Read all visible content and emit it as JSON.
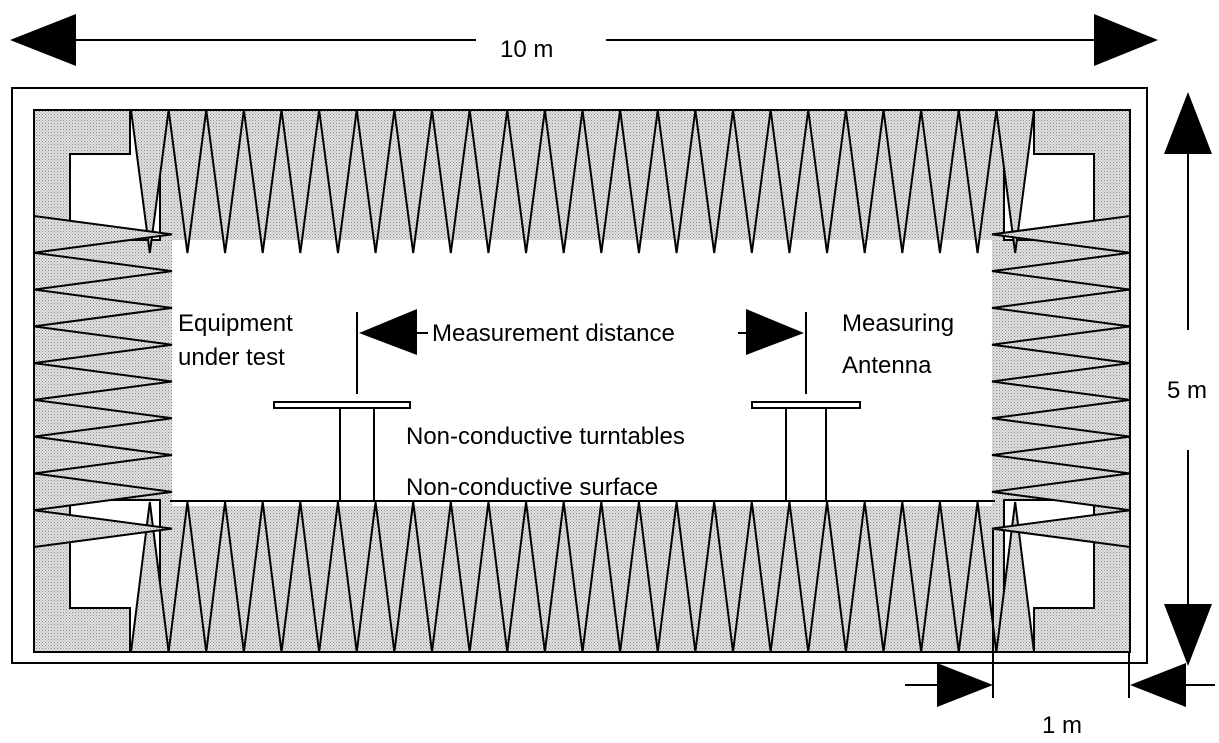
{
  "dimensions": {
    "width_label": "10 m",
    "height_label": "5 m",
    "gap_label": "1 m"
  },
  "labels": {
    "equipment_line1": "Equipment",
    "equipment_line2": "under test",
    "distance": "Measurement distance",
    "antenna_line1": "Measuring",
    "antenna_line2": "Antenna",
    "turntables": "Non-conductive turntables",
    "surface": "Non-conductive surface"
  },
  "colors": {
    "absorber_fill": "#cccccc",
    "line": "#000000",
    "background": "#ffffff"
  }
}
